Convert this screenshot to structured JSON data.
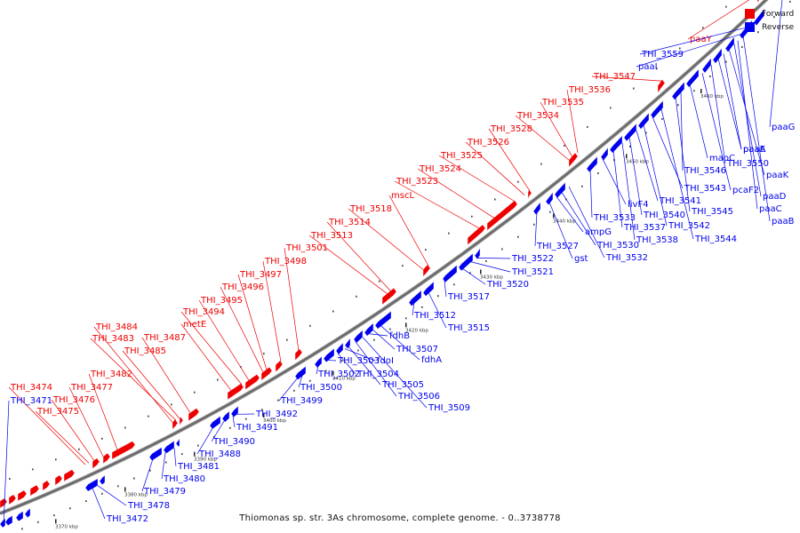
{
  "legend": {
    "forward_label": "Forward",
    "reverse_label": "Reverse",
    "forward_color": "#ee0000",
    "reverse_color": "#0000ee"
  },
  "caption": "Thiomonas sp. str. 3As chromosome, complete genome. - 0..3738778",
  "colors": {
    "forward": "#ee0000",
    "reverse": "#0000ee",
    "backbone": "#888888"
  },
  "ticks": [
    "3370 kbp",
    "3380 kbp",
    "3390 kbp",
    "3400 kbp",
    "3410 kbp",
    "3420 kbp",
    "3430 kbp",
    "3440 kbp",
    "3450 kbp",
    "3460 kbp"
  ],
  "forward_labels": [
    "THI_3474",
    "THI_3476",
    "THI_3475",
    "THI_3477",
    "THI_3482",
    "THI_3484",
    "THI_3483",
    "THI_3485",
    "THI_3487",
    "metE",
    "THI_3494",
    "THI_3495",
    "THI_3496",
    "THI_3497",
    "THI_3498",
    "THI_3501",
    "THI_3513",
    "THI_3514",
    "THI_3518",
    "mscL",
    "THI_3523",
    "THI_3524",
    "THI_3525",
    "THI_3526",
    "THI_3528",
    "THI_3534",
    "THI_3535",
    "THI_3536",
    "THI_3547",
    "paaY"
  ],
  "reverse_labels": [
    "THI_3471",
    "THI_3472",
    "THI_3478",
    "THI_3479",
    "THI_3480",
    "THI_3481",
    "THI_3488",
    "THI_3490",
    "THI_3491",
    "THI_3492",
    "THI_3499",
    "THI_3500",
    "THI_3502",
    "THI_3503",
    "THI_3504",
    "THI_3505",
    "THI_3506",
    "THI_3509",
    "fdoI",
    "fdhB",
    "THI_3507",
    "fdhA",
    "THI_3512",
    "THI_3515",
    "THI_3517",
    "THI_3520",
    "THI_3521",
    "THI_3522",
    "THI_3527",
    "gst",
    "ampG",
    "THI_3530",
    "THI_3532",
    "THI_3533",
    "livF4",
    "THI_3537",
    "THI_3538",
    "THI_3540",
    "THI_3541",
    "THI_3542",
    "THI_3543",
    "THI_3544",
    "THI_3545",
    "THI_3546",
    "maoC",
    "pcaF2",
    "THI_3550",
    "paaE",
    "paaA",
    "paaK",
    "paaD",
    "paaC",
    "paaB",
    "paaG",
    "THI_3559",
    "paaI"
  ]
}
